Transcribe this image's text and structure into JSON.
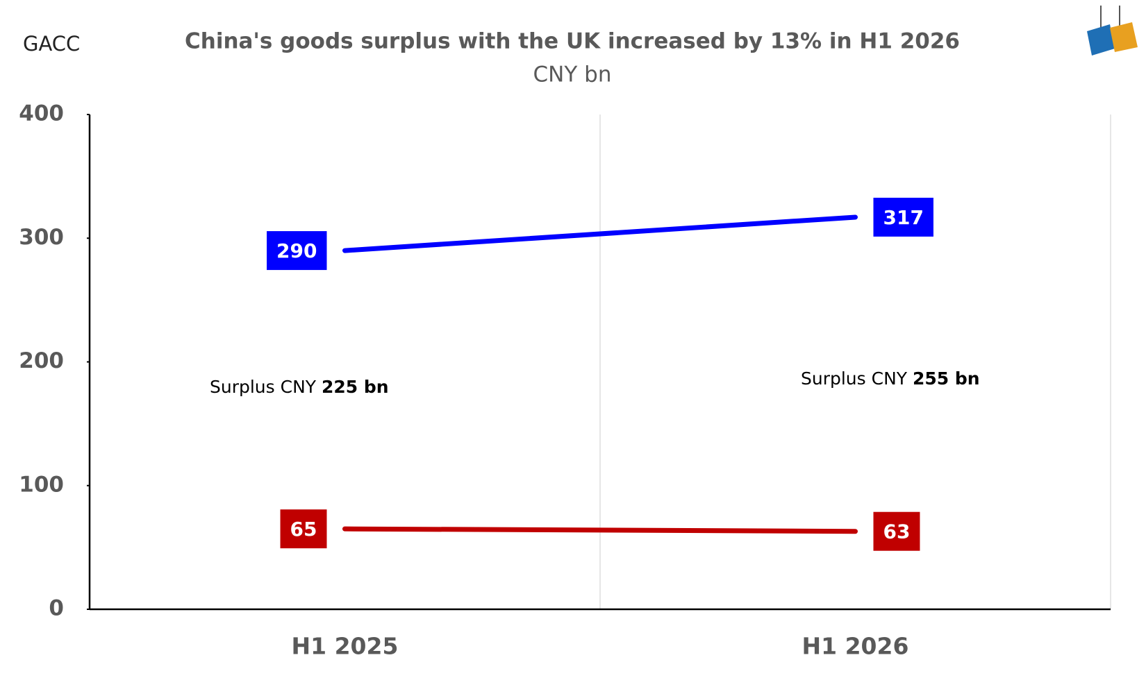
{
  "chart_data": {
    "type": "line",
    "source": "GACC",
    "title": "China's goods surplus with the UK increased by 13% in H1 2026",
    "subtitle": "CNY bn",
    "categories": [
      "H1 2025",
      "H1 2026"
    ],
    "series": [
      {
        "color": "#0000ff",
        "values": [
          290,
          317
        ]
      },
      {
        "color": "#c00000",
        "values": [
          65,
          63
        ]
      }
    ],
    "ylim": [
      0,
      400
    ],
    "yticks": [
      0,
      100,
      200,
      300,
      400
    ],
    "grid": true,
    "annotations": [
      {
        "text": "Surplus CNY",
        "value": "225 bn"
      },
      {
        "text": "Surplus CNY",
        "value": "255 bn"
      }
    ]
  }
}
